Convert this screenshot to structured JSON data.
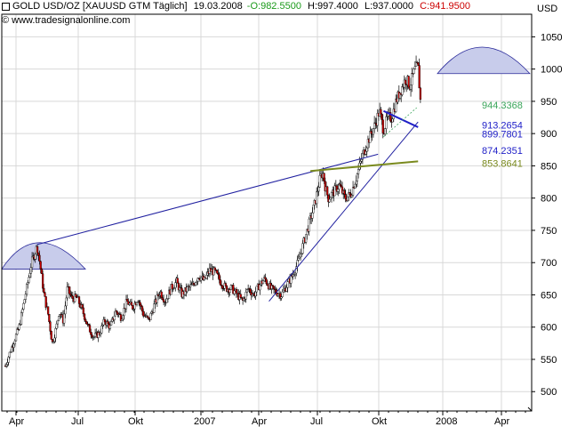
{
  "header": {
    "prefix_icon": "box-icon",
    "symbol": "GOLD USD/OZ [XAUUSD GTM Täglich]",
    "date": "19.03.2008",
    "open": "-O:982.5500",
    "high": "H:997.4000",
    "low": "L:937.0000",
    "close": "C:941.9500",
    "copyright": "© www.tradesignalonline.com",
    "unit": "USD",
    "colors": {
      "open": "#1a9a1a",
      "close": "#cc0000",
      "text": "#000000"
    }
  },
  "chart_data": {
    "type": "candlestick",
    "ylabel": "USD",
    "ylim": [
      470,
      1085
    ],
    "y_ticks": [
      500,
      550,
      600,
      650,
      700,
      750,
      800,
      850,
      900,
      950,
      1000,
      1050
    ],
    "x_ticks": [
      "Apr",
      "Jul",
      "Okt",
      "2007",
      "Apr",
      "Jul",
      "Okt",
      "2008",
      "Apr"
    ],
    "x_domain_days": 760,
    "grid": true,
    "series": [
      {
        "name": "XAUUSD",
        "sampled_close": [
          [
            0,
            540
          ],
          [
            8,
            565
          ],
          [
            20,
            600
          ],
          [
            30,
            655
          ],
          [
            38,
            700
          ],
          [
            46,
            725
          ],
          [
            50,
            700
          ],
          [
            56,
            650
          ],
          [
            62,
            620
          ],
          [
            68,
            575
          ],
          [
            74,
            600
          ],
          [
            78,
            625
          ],
          [
            84,
            610
          ],
          [
            90,
            660
          ],
          [
            96,
            645
          ],
          [
            104,
            645
          ],
          [
            112,
            625
          ],
          [
            120,
            600
          ],
          [
            128,
            585
          ],
          [
            136,
            590
          ],
          [
            144,
            610
          ],
          [
            152,
            600
          ],
          [
            160,
            625
          ],
          [
            168,
            615
          ],
          [
            176,
            640
          ],
          [
            184,
            630
          ],
          [
            192,
            645
          ],
          [
            200,
            620
          ],
          [
            208,
            610
          ],
          [
            216,
            635
          ],
          [
            224,
            655
          ],
          [
            232,
            640
          ],
          [
            240,
            660
          ],
          [
            248,
            670
          ],
          [
            256,
            650
          ],
          [
            264,
            660
          ],
          [
            272,
            665
          ],
          [
            280,
            680
          ],
          [
            288,
            672
          ],
          [
            296,
            688
          ],
          [
            304,
            685
          ],
          [
            312,
            670
          ],
          [
            320,
            660
          ],
          [
            328,
            660
          ],
          [
            336,
            650
          ],
          [
            344,
            640
          ],
          [
            352,
            660
          ],
          [
            360,
            650
          ],
          [
            368,
            665
          ],
          [
            376,
            675
          ],
          [
            384,
            660
          ],
          [
            392,
            655
          ],
          [
            400,
            650
          ],
          [
            408,
            665
          ],
          [
            416,
            680
          ],
          [
            424,
            700
          ],
          [
            432,
            730
          ],
          [
            440,
            760
          ],
          [
            448,
            790
          ],
          [
            456,
            830
          ],
          [
            460,
            840
          ],
          [
            464,
            815
          ],
          [
            468,
            800
          ],
          [
            476,
            810
          ],
          [
            484,
            820
          ],
          [
            492,
            800
          ],
          [
            500,
            805
          ],
          [
            508,
            830
          ],
          [
            516,
            860
          ],
          [
            524,
            885
          ],
          [
            530,
            900
          ],
          [
            536,
            915
          ],
          [
            542,
            935
          ],
          [
            548,
            905
          ],
          [
            554,
            925
          ],
          [
            560,
            925
          ],
          [
            566,
            950
          ],
          [
            572,
            965
          ],
          [
            580,
            985
          ],
          [
            586,
            975
          ],
          [
            594,
            1000
          ],
          [
            598,
            1005
          ],
          [
            602,
            941.95
          ]
        ]
      }
    ],
    "annotations": [
      {
        "type": "arc",
        "color": "#c8cceb",
        "apex_value": 730
      },
      {
        "type": "arc",
        "color": "#c8cceb",
        "apex_value": 1032
      },
      {
        "type": "trendline",
        "name": "long",
        "color": "#2020a0"
      },
      {
        "type": "trendline",
        "name": "up",
        "color": "#2020a0"
      },
      {
        "type": "trendline",
        "name": "support",
        "color": "#7a8a1e"
      },
      {
        "type": "channel",
        "color": "#2020c8"
      }
    ],
    "levels": [
      {
        "label": "944.3368",
        "value": 944.3368,
        "color": "#3aa55a"
      },
      {
        "label": "913.2654",
        "value": 913.2654,
        "color": "#2020c8"
      },
      {
        "label": "899.7801",
        "value": 899.7801,
        "color": "#2020c8"
      },
      {
        "label": "874.2351",
        "value": 874.2351,
        "color": "#2020c8"
      },
      {
        "label": "853.8641",
        "value": 853.8641,
        "color": "#7a8a1e"
      }
    ]
  }
}
